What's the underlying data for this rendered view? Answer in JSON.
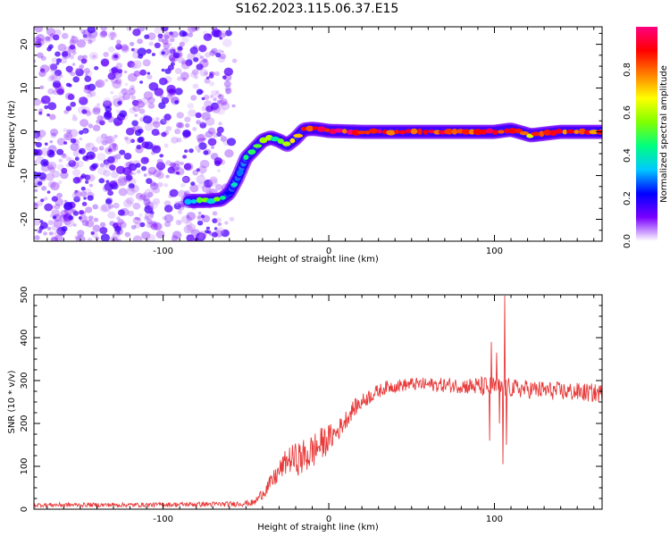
{
  "title": "S162.2023.115.06.37.E15",
  "chart_data": [
    {
      "type": "heatmap",
      "xlabel": "Height of straight line (km)",
      "ylabel": "Frequency (Hz)",
      "xlim": [
        -178,
        165
      ],
      "ylim": [
        -25,
        24
      ],
      "xticks": [
        -100,
        0,
        100
      ],
      "yticks": [
        -20,
        -10,
        0,
        10,
        20
      ],
      "colorbar": {
        "label": "Normalized spectral amplitude",
        "range": [
          0,
          1
        ],
        "ticks": [
          0.0,
          0.2,
          0.4,
          0.6,
          0.8
        ],
        "colors": [
          "#ffffff",
          "#7a00ff",
          "#0000ff",
          "#00c8ff",
          "#00ff80",
          "#80ff00",
          "#ffff00",
          "#ff8000",
          "#ff0000",
          "#ff0080"
        ]
      },
      "noise_region": {
        "x_from": -178,
        "x_to": -60,
        "amplitude": 0.15
      },
      "ridge": [
        {
          "x": -85,
          "y": -15.8,
          "a": 0.45
        },
        {
          "x": -75,
          "y": -15.8,
          "a": 0.45
        },
        {
          "x": -65,
          "y": -15.5,
          "a": 0.5
        },
        {
          "x": -60,
          "y": -14.0,
          "a": 0.3
        },
        {
          "x": -55,
          "y": -10.5,
          "a": 0.3
        },
        {
          "x": -50,
          "y": -6.0,
          "a": 0.35
        },
        {
          "x": -45,
          "y": -4.0,
          "a": 0.45
        },
        {
          "x": -40,
          "y": -2.0,
          "a": 0.5
        },
        {
          "x": -35,
          "y": -1.3,
          "a": 0.55
        },
        {
          "x": -30,
          "y": -2.0,
          "a": 0.5
        },
        {
          "x": -25,
          "y": -3.0,
          "a": 0.55
        },
        {
          "x": -20,
          "y": -1.5,
          "a": 0.6
        },
        {
          "x": -15,
          "y": 0.5,
          "a": 0.75
        },
        {
          "x": -10,
          "y": 0.7,
          "a": 0.85
        },
        {
          "x": -5,
          "y": 0.5,
          "a": 0.85
        },
        {
          "x": 0,
          "y": 0.2,
          "a": 0.9
        },
        {
          "x": 20,
          "y": 0.0,
          "a": 0.9
        },
        {
          "x": 50,
          "y": 0.0,
          "a": 0.9
        },
        {
          "x": 80,
          "y": 0.0,
          "a": 0.9
        },
        {
          "x": 100,
          "y": 0.0,
          "a": 0.85
        },
        {
          "x": 110,
          "y": 0.5,
          "a": 0.8
        },
        {
          "x": 122,
          "y": -0.8,
          "a": 0.75
        },
        {
          "x": 140,
          "y": 0.0,
          "a": 0.85
        },
        {
          "x": 165,
          "y": 0.0,
          "a": 0.85
        }
      ]
    },
    {
      "type": "line",
      "xlabel": "Height of straight line (km)",
      "ylabel": "SNR (10 * v/v)",
      "xlim": [
        -178,
        165
      ],
      "ylim": [
        0,
        500
      ],
      "xticks": [
        -100,
        0,
        100
      ],
      "yticks": [
        0,
        100,
        200,
        300,
        400,
        500
      ],
      "color": "#e83a3a",
      "profile": [
        {
          "x": -178,
          "y": 10,
          "noise": 5
        },
        {
          "x": -120,
          "y": 10,
          "noise": 5
        },
        {
          "x": -60,
          "y": 12,
          "noise": 6
        },
        {
          "x": -45,
          "y": 15,
          "noise": 8
        },
        {
          "x": -35,
          "y": 60,
          "noise": 20
        },
        {
          "x": -25,
          "y": 115,
          "noise": 30
        },
        {
          "x": -15,
          "y": 120,
          "noise": 45
        },
        {
          "x": -5,
          "y": 150,
          "noise": 40
        },
        {
          "x": 5,
          "y": 180,
          "noise": 25
        },
        {
          "x": 15,
          "y": 235,
          "noise": 20
        },
        {
          "x": 25,
          "y": 265,
          "noise": 18
        },
        {
          "x": 35,
          "y": 285,
          "noise": 15
        },
        {
          "x": 50,
          "y": 292,
          "noise": 15
        },
        {
          "x": 80,
          "y": 288,
          "noise": 18
        },
        {
          "x": 95,
          "y": 285,
          "noise": 25
        },
        {
          "x": 110,
          "y": 282,
          "noise": 22
        },
        {
          "x": 140,
          "y": 275,
          "noise": 22
        },
        {
          "x": 165,
          "y": 270,
          "noise": 22
        }
      ],
      "spikes": [
        {
          "x": 97,
          "y": 160
        },
        {
          "x": 98,
          "y": 390
        },
        {
          "x": 101,
          "y": 365
        },
        {
          "x": 103,
          "y": 200
        },
        {
          "x": 105,
          "y": 105
        },
        {
          "x": 106,
          "y": 498
        },
        {
          "x": 107,
          "y": 150
        }
      ]
    }
  ]
}
